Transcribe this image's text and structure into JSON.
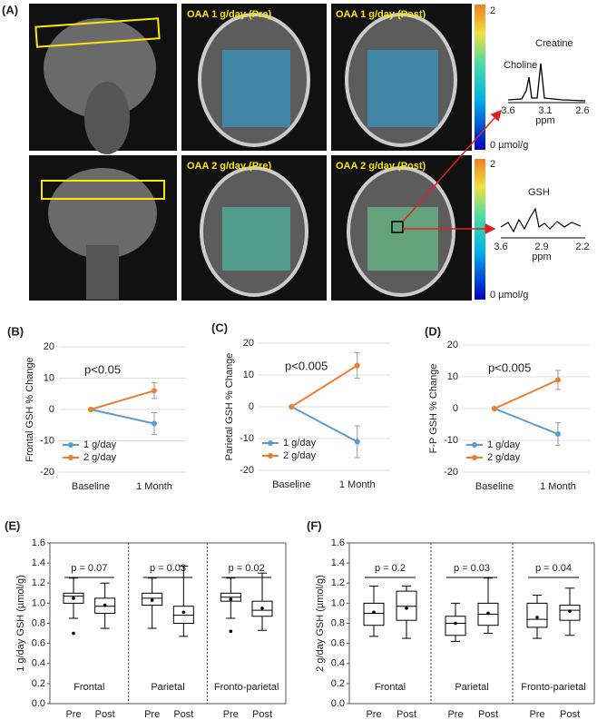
{
  "panel_a": {
    "label": "(A)",
    "image_labels": [
      "OAA 1 g/day (Pre)",
      "OAA 1 g/day (Post)",
      "OAA 2 g/day (Pre)",
      "OAA 2 g/day (Post)"
    ],
    "colorbar_top": [
      "2",
      "2"
    ],
    "colorbar_bottom": [
      "0 µmol/g",
      "0 µmol/g"
    ],
    "spectrum_1": {
      "peaks": [
        "Choline",
        "Creatine"
      ],
      "ticks": [
        "3.6",
        "3.1",
        "2.6"
      ],
      "unit": "ppm"
    },
    "spectrum_2": {
      "peaks": [
        "GSH"
      ],
      "ticks": [
        "3.6",
        "2.9",
        "2.2"
      ],
      "unit": "ppm"
    }
  },
  "chart_data": [
    {
      "type": "line",
      "panel_label": "(B)",
      "ylabel": "Frontal  GSH % Change",
      "categories": [
        "Baseline",
        "1 Month"
      ],
      "ylim": [
        -20,
        20
      ],
      "yticks": [
        -20,
        -10,
        0,
        10,
        20
      ],
      "grid": true,
      "legend": "lower left",
      "annotation": "p<0.05",
      "series": [
        {
          "name": "1 g/day",
          "color": "#5b9bd5",
          "values": [
            0,
            -4.5
          ],
          "errors": [
            0,
            3.5
          ]
        },
        {
          "name": "2 g/day",
          "color": "#ed7d31",
          "values": [
            0,
            6
          ],
          "errors": [
            0,
            2.5
          ]
        }
      ]
    },
    {
      "type": "line",
      "panel_label": "(C)",
      "ylabel": "Parietal  GSH % Change",
      "categories": [
        "Baseline",
        "1 Month"
      ],
      "ylim": [
        -20,
        20
      ],
      "yticks": [
        -20,
        -10,
        0,
        10,
        20
      ],
      "grid": true,
      "legend": "lower left",
      "annotation": "p<0.005",
      "series": [
        {
          "name": "1 g/day",
          "color": "#5b9bd5",
          "values": [
            0,
            -11
          ],
          "errors": [
            0,
            5
          ]
        },
        {
          "name": "2 g/day",
          "color": "#ed7d31",
          "values": [
            0,
            13
          ],
          "errors": [
            0,
            4
          ]
        }
      ]
    },
    {
      "type": "line",
      "panel_label": "(D)",
      "ylabel": "F-P GSH % Change",
      "categories": [
        "Baseline",
        "1 Month"
      ],
      "ylim": [
        -20,
        20
      ],
      "yticks": [
        -20,
        -10,
        0,
        10,
        20
      ],
      "grid": true,
      "legend": "lower left",
      "annotation": "p<0.005",
      "series": [
        {
          "name": "1 g/day",
          "color": "#5b9bd5",
          "values": [
            0,
            -8
          ],
          "errors": [
            0,
            3.5
          ]
        },
        {
          "name": "2 g/day",
          "color": "#ed7d31",
          "values": [
            0,
            9
          ],
          "errors": [
            0,
            3
          ]
        }
      ]
    },
    {
      "type": "box",
      "panel_label": "(E)",
      "ylabel": "1 g/day GSH (µmol/g)",
      "groups": [
        "Frontal",
        "Parietal",
        "Fronto-parietal"
      ],
      "annotations": [
        "p = 0.07",
        "p = 0.03",
        "p = 0.02"
      ],
      "categories": [
        "Pre",
        "Post",
        "Pre",
        "Post",
        "Pre",
        "Post"
      ],
      "ylim": [
        0,
        1.6
      ],
      "yticks": [
        {
          "value": 0,
          "label": "0.0"
        },
        0.2,
        0.4,
        0.6,
        0.8,
        {
          "value": 1,
          "label": "1.0"
        },
        1.2,
        1.4,
        1.6
      ],
      "boxes": [
        {
          "whislo": 0.85,
          "q1": 1.0,
          "med": 1.07,
          "q3": 1.1,
          "whishi": 1.25,
          "mean": 1.05,
          "fliers": [
            0.7
          ]
        },
        {
          "whislo": 0.75,
          "q1": 0.9,
          "med": 0.97,
          "q3": 1.05,
          "whishi": 1.2,
          "mean": 0.98
        },
        {
          "whislo": 0.75,
          "q1": 0.98,
          "med": 1.05,
          "q3": 1.1,
          "whishi": 1.25,
          "mean": 1.03
        },
        {
          "whislo": 0.67,
          "q1": 0.8,
          "med": 0.88,
          "q3": 0.97,
          "whishi": 1.37,
          "mean": 0.91
        },
        {
          "whislo": 0.85,
          "q1": 1.02,
          "med": 1.06,
          "q3": 1.1,
          "whishi": 1.25,
          "mean": 1.04,
          "fliers": [
            0.72
          ]
        },
        {
          "whislo": 0.73,
          "q1": 0.87,
          "med": 0.93,
          "q3": 1.02,
          "whishi": 1.3,
          "mean": 0.95
        }
      ]
    },
    {
      "type": "box",
      "panel_label": "(F)",
      "ylabel": "2 g/day GSH (µmol/g)",
      "groups": [
        "Frontal",
        "Parietal",
        "Fronto-parietal"
      ],
      "annotations": [
        "p = 0.2",
        "p = 0.03",
        "p = 0.04"
      ],
      "categories": [
        "Pre",
        "Post",
        "Pre",
        "Post",
        "Pre",
        "Post"
      ],
      "ylim": [
        0,
        1.6
      ],
      "yticks": [
        {
          "value": 0,
          "label": "0.0"
        },
        0.2,
        0.4,
        0.6,
        0.8,
        {
          "value": 1,
          "label": "1.0"
        },
        1.2,
        1.4,
        1.6
      ],
      "boxes": [
        {
          "whislo": 0.67,
          "q1": 0.78,
          "med": 0.9,
          "q3": 1.0,
          "whishi": 1.17,
          "mean": 0.91
        },
        {
          "whislo": 0.65,
          "q1": 0.83,
          "med": 0.97,
          "q3": 1.12,
          "whishi": 1.17,
          "mean": 0.95
        },
        {
          "whislo": 0.62,
          "q1": 0.68,
          "med": 0.8,
          "q3": 0.87,
          "whishi": 1.0,
          "mean": 0.8
        },
        {
          "whislo": 0.7,
          "q1": 0.78,
          "med": 0.89,
          "q3": 1.0,
          "whishi": 1.25,
          "mean": 0.9
        },
        {
          "whislo": 0.65,
          "q1": 0.76,
          "med": 0.84,
          "q3": 1.0,
          "whishi": 1.08,
          "mean": 0.86
        },
        {
          "whislo": 0.68,
          "q1": 0.83,
          "med": 0.93,
          "q3": 0.98,
          "whishi": 1.15,
          "mean": 0.92
        }
      ]
    }
  ]
}
